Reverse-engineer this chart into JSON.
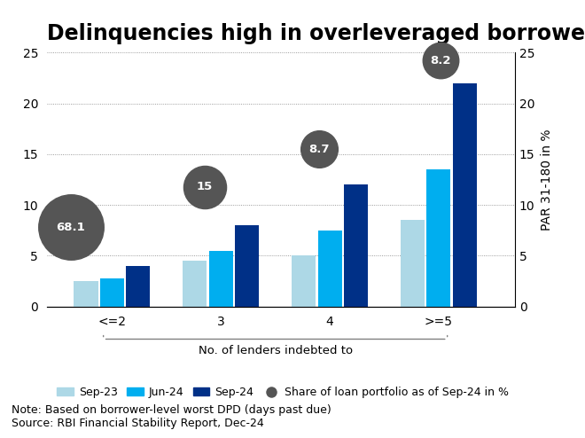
{
  "title": "Delinquencies high in overleveraged borrowers",
  "categories": [
    "<=2",
    "3",
    "4",
    ">=5"
  ],
  "sep23": [
    2.5,
    4.5,
    5.0,
    8.5
  ],
  "jun24": [
    2.8,
    5.5,
    7.5,
    13.5
  ],
  "sep24": [
    4.0,
    8.0,
    12.0,
    22.0
  ],
  "portfolio_share": [
    68.1,
    15,
    8.7,
    8.2
  ],
  "color_sep23": "#add8e6",
  "color_jun24": "#00aeef",
  "color_sep24": "#003087",
  "color_bubble": "#555555",
  "ylim": [
    0,
    25
  ],
  "yticks": [
    0,
    5,
    10,
    15,
    20,
    25
  ],
  "xlabel_main": "No. of lenders indebted to",
  "ylabel_right": "PAR 31-180 in %",
  "legend_labels": [
    "Sep-23",
    "Jun-24",
    "Sep-24",
    "Share of loan portfolio as of Sep-24 in %"
  ],
  "note_line1": "Note: Based on borrower-level worst DPD (days past due)",
  "note_line2": "Source: RBI Financial Stability Report, Dec-24",
  "background_color": "#ffffff",
  "title_fontsize": 17,
  "axis_fontsize": 10,
  "legend_fontsize": 9,
  "note_fontsize": 9
}
